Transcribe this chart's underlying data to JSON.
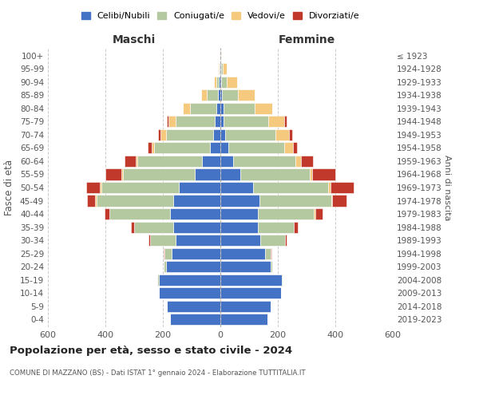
{
  "age_groups": [
    "0-4",
    "5-9",
    "10-14",
    "15-19",
    "20-24",
    "25-29",
    "30-34",
    "35-39",
    "40-44",
    "45-49",
    "50-54",
    "55-59",
    "60-64",
    "65-69",
    "70-74",
    "75-79",
    "80-84",
    "85-89",
    "90-94",
    "95-99",
    "100+"
  ],
  "birth_years": [
    "2019-2023",
    "2014-2018",
    "2009-2013",
    "2004-2008",
    "1999-2003",
    "1994-1998",
    "1989-1993",
    "1984-1988",
    "1979-1983",
    "1974-1978",
    "1969-1973",
    "1964-1968",
    "1959-1963",
    "1954-1958",
    "1949-1953",
    "1944-1948",
    "1939-1943",
    "1934-1938",
    "1929-1933",
    "1924-1928",
    "≤ 1923"
  ],
  "colors": {
    "celibi": "#4472c4",
    "coniugati": "#b5c9a0",
    "vedovi": "#f5c97e",
    "divorziati": "#c0392b"
  },
  "maschi": {
    "celibi": [
      175,
      185,
      215,
      215,
      190,
      170,
      155,
      165,
      175,
      165,
      145,
      90,
      65,
      35,
      25,
      20,
      15,
      8,
      5,
      3,
      2
    ],
    "coniugati": [
      0,
      0,
      0,
      5,
      8,
      25,
      90,
      135,
      210,
      265,
      270,
      250,
      225,
      195,
      165,
      135,
      90,
      40,
      8,
      2,
      0
    ],
    "vedovi": [
      0,
      0,
      0,
      0,
      0,
      0,
      0,
      0,
      0,
      5,
      5,
      5,
      5,
      10,
      18,
      25,
      25,
      20,
      8,
      2,
      0
    ],
    "divorziati": [
      0,
      0,
      0,
      0,
      0,
      2,
      5,
      10,
      18,
      28,
      48,
      55,
      38,
      12,
      10,
      5,
      0,
      0,
      0,
      0,
      0
    ]
  },
  "femmine": {
    "celibi": [
      165,
      175,
      210,
      215,
      175,
      155,
      140,
      130,
      130,
      135,
      115,
      70,
      45,
      28,
      18,
      12,
      10,
      5,
      3,
      2,
      1
    ],
    "coniugati": [
      0,
      0,
      0,
      3,
      6,
      20,
      85,
      125,
      195,
      250,
      260,
      240,
      215,
      195,
      175,
      155,
      110,
      55,
      18,
      5,
      0
    ],
    "vedovi": [
      0,
      0,
      0,
      0,
      0,
      0,
      0,
      0,
      5,
      5,
      8,
      10,
      20,
      30,
      45,
      55,
      60,
      60,
      38,
      15,
      2
    ],
    "divorziati": [
      0,
      0,
      0,
      0,
      0,
      2,
      5,
      15,
      25,
      50,
      80,
      80,
      42,
      15,
      12,
      8,
      0,
      0,
      0,
      0,
      0
    ]
  },
  "xlim": 600,
  "title": "Popolazione per età, sesso e stato civile - 2024",
  "subtitle": "COMUNE DI MAZZANO (BS) - Dati ISTAT 1° gennaio 2024 - Elaborazione TUTTITALIA.IT",
  "xlabel_left": "Maschi",
  "xlabel_right": "Femmine",
  "ylabel": "Fasce di età",
  "ylabel_right": "Anni di nascita",
  "legend_labels": [
    "Celibi/Nubili",
    "Coniugati/e",
    "Vedovi/e",
    "Divorziati/e"
  ],
  "background_color": "#ffffff",
  "grid_color": "#cccccc"
}
